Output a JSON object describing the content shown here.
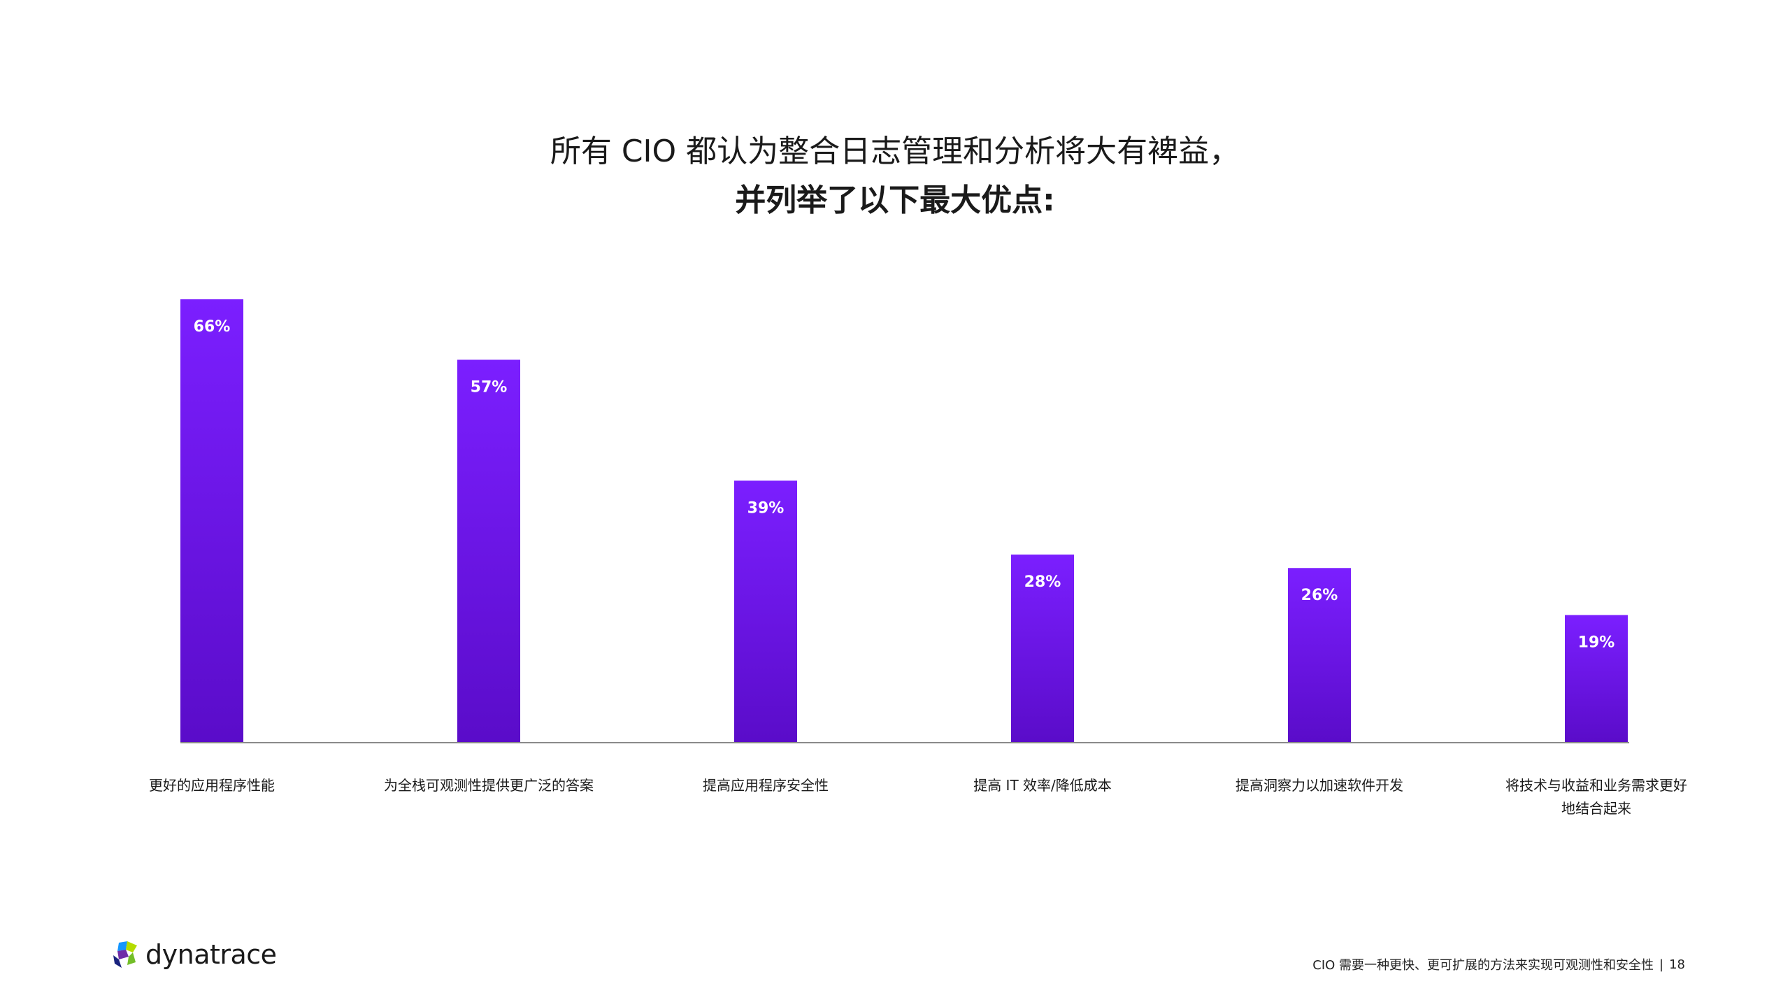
{
  "page": {
    "footer_caption": "CIO 需要一种更快、更可扩展的方法来实现可观测性和安全性",
    "page_number": "18",
    "separator": "|",
    "logo_text": "dynatrace",
    "logo_icon": "dynatrace-logo-icon"
  },
  "colors": {
    "bar_top": "#7B1FFF",
    "bar_bottom": "#5A0CC9",
    "axis": "#8a8a8a",
    "label_text": "#ffffff"
  },
  "chart_data": {
    "type": "bar",
    "title": "所有 CIO 都认为整合日志管理和分析将大有裨益，",
    "subtitle": "并列举了以下最大优点:",
    "categories": [
      [
        "更好的应用程序性能"
      ],
      [
        "为全栈可观测性提供更广泛的答案"
      ],
      [
        "提高应用程序安全性"
      ],
      [
        "提高 IT 效率/降低成本"
      ],
      [
        "提高洞察力以加速软件开发"
      ],
      [
        "将技术与收益和业务需求更好",
        "地结合起来"
      ]
    ],
    "values": [
      66,
      57,
      39,
      28,
      26,
      19
    ],
    "value_labels": [
      "66%",
      "57%",
      "39%",
      "28%",
      "26%",
      "19%"
    ],
    "ylim": [
      0,
      66
    ],
    "grid": false,
    "legend": "none",
    "xlabel": "",
    "ylabel": ""
  }
}
